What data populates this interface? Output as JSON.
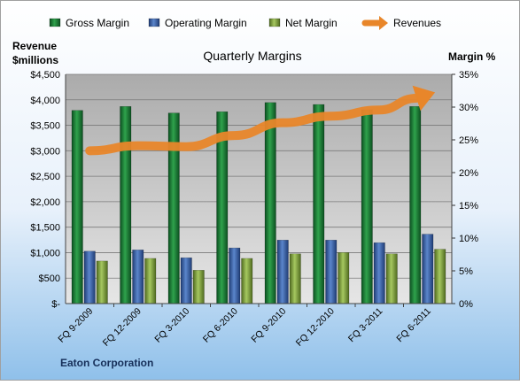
{
  "chart_data": {
    "type": "bar",
    "title": "Quarterly Margins",
    "company": "Eaton Corporation",
    "left_axis_label": [
      "Revenue",
      "$millions"
    ],
    "right_axis_label": "Margin %",
    "categories": [
      "FQ 9-2009",
      "FQ 12-2009",
      "FQ 3-2010",
      "FQ 6-2010",
      "FQ 9-2010",
      "FQ 12-2010",
      "FQ 3-2011",
      "FQ 6-2011"
    ],
    "left_ticks": [
      "$-",
      "$500",
      "$1,000",
      "$1,500",
      "$2,000",
      "$2,500",
      "$3,000",
      "$3,500",
      "$4,000",
      "$4,500"
    ],
    "right_ticks": [
      "0%",
      "5%",
      "10%",
      "15%",
      "20%",
      "25%",
      "30%",
      "35%"
    ],
    "left_ylim": [
      0,
      4500
    ],
    "right_ylim": [
      0,
      35
    ],
    "legend_position": "top",
    "series": [
      {
        "name": "Gross Margin",
        "axis": "right",
        "kind": "bar",
        "color": "#1e8a3c",
        "values": [
          29.5,
          30.1,
          29.1,
          29.3,
          30.7,
          30.4,
          29.6,
          30.1
        ]
      },
      {
        "name": "Operating Margin",
        "axis": "right",
        "kind": "bar",
        "color": "#3a64ad",
        "values": [
          8.0,
          8.2,
          7.0,
          8.5,
          9.7,
          9.7,
          9.3,
          10.6
        ]
      },
      {
        "name": "Net Margin",
        "axis": "right",
        "kind": "bar",
        "color": "#8fb04a",
        "values": [
          6.5,
          6.9,
          5.1,
          6.9,
          7.6,
          7.8,
          7.6,
          8.3
        ]
      },
      {
        "name": "Revenues",
        "axis": "left",
        "kind": "line",
        "color": "#e8862a",
        "values": [
          3000,
          3100,
          3080,
          3300,
          3550,
          3680,
          3800,
          4100
        ]
      }
    ]
  }
}
